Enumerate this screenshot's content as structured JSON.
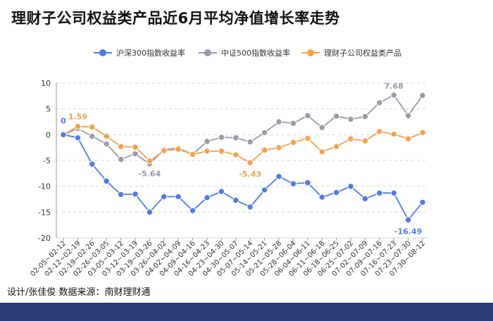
{
  "header": {
    "title": "理财子公司权益类产品近6月平均净值增长率走势"
  },
  "footer": {
    "credit": "设计/张佳俊  数据来源：南财理财通"
  },
  "legend": [
    {
      "label": "沪深300指数收益率"
    },
    {
      "label": "中证500指数收益率"
    },
    {
      "label": "理财子公司权益类产品"
    }
  ],
  "colors": {
    "hs300": "#4f7be6",
    "zz500": "#9a9aa8",
    "wealth": "#f3a24c",
    "footer": "#2a3d74"
  },
  "chart_data": {
    "type": "line",
    "title": "理财子公司权益类产品近6月平均净值增长率走势",
    "ylim": [
      -20,
      10
    ],
    "yticks": [
      10,
      5,
      0,
      -5,
      -10,
      -15,
      -20
    ],
    "grid": "horizontal dashed",
    "legend_position": "top",
    "categories": [
      "02-05~02-12",
      "02-12~02-19",
      "02-19~02-26",
      "02-26~03-05",
      "03-05~03-12",
      "03-12~03-19",
      "03-19~03-26",
      "03-26~04-02",
      "04-02~04-09",
      "04-09~04-16",
      "04-16~04-23",
      "04-23~04-30",
      "04-30~05-07",
      "05-07~05-14",
      "05-14~05-21",
      "05-21~05-28",
      "05-28~06-04",
      "06-04~06-11",
      "06-11~06-18",
      "06-18~06-25",
      "06-25~07-02",
      "07-02~07-09",
      "07-09~07-16",
      "07-16~07-23",
      "07-23~07-30",
      "07-30~08-12"
    ],
    "series": [
      {
        "name": "沪深300指数收益率",
        "key": "hs300",
        "values": [
          0,
          -0.6,
          -5.7,
          -9.0,
          -11.6,
          -11.5,
          -15.0,
          -12.0,
          -12.0,
          -14.7,
          -12.2,
          -11.0,
          -12.7,
          -14.0,
          -10.7,
          -8.1,
          -9.5,
          -9.3,
          -12.1,
          -11.2,
          -10.0,
          -12.4,
          -11.3,
          -11.3,
          -16.49,
          -13.1
        ]
      },
      {
        "name": "中证500指数收益率",
        "key": "zz500",
        "values": [
          0,
          1.2,
          -0.3,
          -1.8,
          -4.8,
          -3.7,
          -5.64,
          -2.9,
          -2.6,
          -3.8,
          -1.3,
          -0.5,
          -0.6,
          -1.4,
          0.4,
          2.5,
          2.2,
          3.7,
          1.4,
          3.6,
          3.0,
          3.5,
          6.2,
          7.68,
          3.7,
          7.6
        ]
      },
      {
        "name": "理财子公司权益类产品",
        "key": "wealth",
        "values": [
          0,
          1.59,
          1.5,
          -0.3,
          -2.3,
          -2.4,
          -5.1,
          -3.1,
          -2.8,
          -3.8,
          -3.2,
          -3.2,
          -3.9,
          -5.43,
          -3.0,
          -2.5,
          -1.5,
          -0.7,
          -3.3,
          -2.3,
          -0.8,
          -1.2,
          0.6,
          0.1,
          -0.8,
          0.4
        ]
      }
    ],
    "annotations": [
      {
        "series": "hs300",
        "index": 0,
        "text": "0"
      },
      {
        "series": "wealth",
        "index": 1,
        "text": "1.59"
      },
      {
        "series": "zz500",
        "index": 6,
        "text": "-5.64"
      },
      {
        "series": "wealth",
        "index": 13,
        "text": "-5.43"
      },
      {
        "series": "zz500",
        "index": 23,
        "text": "7.68"
      },
      {
        "series": "hs300",
        "index": 24,
        "text": "-16.49"
      }
    ]
  }
}
